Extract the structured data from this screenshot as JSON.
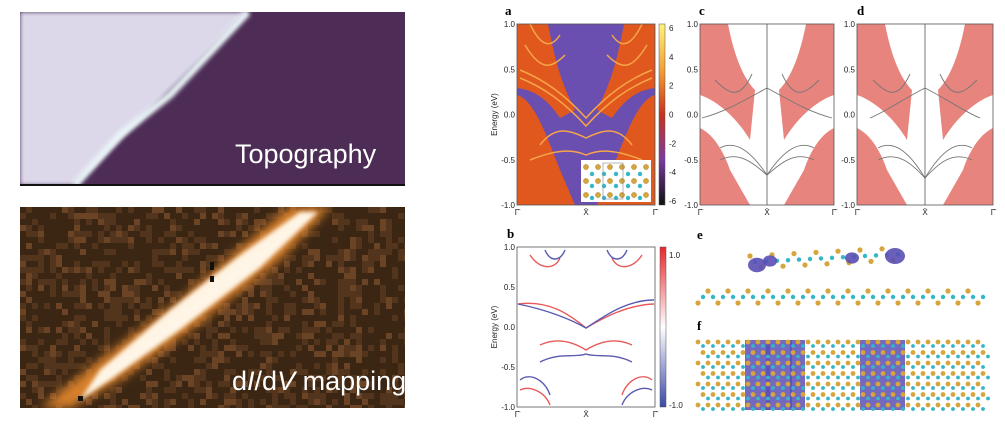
{
  "left": {
    "topography_label": "Topography",
    "didv_label_d": "d",
    "didv_label_I": "I",
    "didv_label_slash_d": "/d",
    "didv_label_V": "V",
    "didv_label_rest": " mapping"
  },
  "panels": {
    "a": {
      "label": "a",
      "ylabel": "Energy (eV)",
      "yticks": [
        "1.0",
        "0.5",
        "0.0",
        "-0.5",
        "-1.0"
      ],
      "xticks": [
        "Γ̄",
        "X̄",
        "Γ̄"
      ],
      "colorbar_ticks": [
        "6",
        "4",
        "2",
        "0",
        "-2",
        "-4",
        "-6"
      ]
    },
    "b": {
      "label": "b",
      "ylabel": "Energy (eV)",
      "yticks": [
        "1.0",
        "0.5",
        "0.0",
        "-0.5",
        "-1.0"
      ],
      "xticks": [
        "Γ̄",
        "X̄",
        "Γ̄"
      ],
      "colorbar_ticks": [
        "1.0",
        "-1.0"
      ]
    },
    "c": {
      "label": "c",
      "yticks": [
        "1.0",
        "0.5",
        "0.0",
        "-0.5",
        "-1.0"
      ],
      "xticks": [
        "Γ̄",
        "X̄",
        "Γ̄"
      ]
    },
    "d": {
      "label": "d",
      "yticks": [
        "1.0",
        "0.5",
        "0.0",
        "-0.5",
        "-1.0"
      ],
      "xticks": [
        "Γ̄",
        "X̄",
        "Γ̄"
      ]
    },
    "e": {
      "label": "e"
    },
    "f": {
      "label": "f"
    }
  },
  "colors": {
    "purple": "#6a4fb0",
    "orange": "#e0581e",
    "band": "#f7a548",
    "pink": "#e8847e",
    "sn": "#d6a63c",
    "se": "#34b6c8",
    "charge": "#5a4fb4"
  }
}
